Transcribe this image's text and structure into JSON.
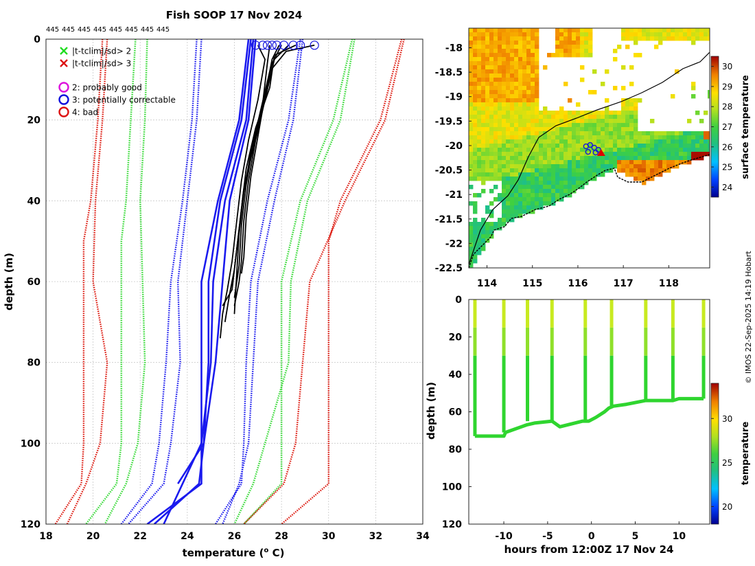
{
  "page": {
    "title": "Fish SOOP 17 Nov 2024",
    "watermark": "© IMOS 22-Sep-2025 14:19 Hobart",
    "profile_count_label": "445",
    "profile_count_repeat": 8
  },
  "colors": {
    "profile": "#000000",
    "clim_blue": "#1a1aee",
    "clim_green": "#3ddb3d",
    "clim_red": "#dd1a10",
    "marker_blue": "#1414dd",
    "coast": "#000000"
  },
  "chart_data": [
    {
      "id": "profiles",
      "type": "line",
      "xlabel": "temperature (° C)",
      "ylabel": "depth (m)",
      "xlim": [
        18,
        34
      ],
      "ylim": [
        120,
        0
      ],
      "xticks": [
        18,
        20,
        22,
        24,
        26,
        28,
        30,
        32,
        34
      ],
      "yticks": [
        0,
        20,
        40,
        60,
        80,
        100,
        120
      ],
      "legend": [
        {
          "label": "|t-tclim|/sd> 2",
          "marker": "x",
          "color": "#22dd22"
        },
        {
          "label": "|t-tclim|/sd> 3",
          "marker": "x",
          "color": "#dd1111"
        },
        {
          "label": "2: probably good",
          "marker": "o",
          "color": "#dd11dd"
        },
        {
          "label": "3: potentially correctable",
          "marker": "o",
          "color": "#1111dd"
        },
        {
          "label": "4: bad",
          "marker": "o",
          "color": "#dd1111"
        }
      ],
      "series": [
        {
          "name": "climatology -3sd",
          "style": "red-dotted",
          "points": [
            [
              20.4,
              0
            ],
            [
              20.2,
              20
            ],
            [
              19.9,
              40
            ],
            [
              19.6,
              50
            ],
            [
              19.6,
              100
            ],
            [
              19.5,
              110
            ],
            [
              18.4,
              120
            ]
          ]
        },
        {
          "name": "climatology -3sd alt",
          "style": "red-dotted",
          "points": [
            [
              20.6,
              0
            ],
            [
              20.4,
              20
            ],
            [
              20.1,
              40
            ],
            [
              20.0,
              60
            ],
            [
              20.6,
              80
            ],
            [
              20.3,
              100
            ],
            [
              19.7,
              110
            ],
            [
              18.9,
              120
            ]
          ]
        },
        {
          "name": "climatology -2sd",
          "style": "green-dotted",
          "points": [
            [
              21.8,
              0
            ],
            [
              21.6,
              20
            ],
            [
              21.4,
              40
            ],
            [
              21.2,
              50
            ],
            [
              21.2,
              100
            ],
            [
              21.0,
              110
            ],
            [
              19.7,
              120
            ]
          ]
        },
        {
          "name": "climatology -2sd alt",
          "style": "green-dotted",
          "points": [
            [
              22.3,
              0
            ],
            [
              22.2,
              20
            ],
            [
              22.0,
              40
            ],
            [
              22.1,
              60
            ],
            [
              22.2,
              80
            ],
            [
              21.9,
              100
            ],
            [
              21.4,
              110
            ],
            [
              20.5,
              120
            ]
          ]
        },
        {
          "name": "climatology -1sd",
          "style": "blue-dotted",
          "points": [
            [
              24.4,
              0
            ],
            [
              24.2,
              20
            ],
            [
              23.8,
              40
            ],
            [
              23.3,
              60
            ],
            [
              23.1,
              80
            ],
            [
              22.8,
              100
            ],
            [
              22.5,
              110
            ],
            [
              21.2,
              120
            ]
          ]
        },
        {
          "name": "climatology -1sd alt",
          "style": "blue-dotted",
          "points": [
            [
              24.6,
              0
            ],
            [
              24.4,
              20
            ],
            [
              24.0,
              40
            ],
            [
              23.6,
              60
            ],
            [
              23.7,
              80
            ],
            [
              23.3,
              100
            ],
            [
              23.0,
              110
            ],
            [
              21.5,
              120
            ]
          ]
        },
        {
          "name": "climatology +1sd",
          "style": "blue-dotted",
          "points": [
            [
              28.8,
              0
            ],
            [
              28.3,
              20
            ],
            [
              27.4,
              40
            ],
            [
              26.7,
              60
            ],
            [
              26.5,
              80
            ],
            [
              26.4,
              100
            ],
            [
              26.3,
              110
            ],
            [
              25.2,
              120
            ]
          ]
        },
        {
          "name": "climatology +1sd alt",
          "style": "blue-dotted",
          "points": [
            [
              28.9,
              0
            ],
            [
              28.5,
              20
            ],
            [
              27.7,
              40
            ],
            [
              27.0,
              60
            ],
            [
              26.8,
              80
            ],
            [
              26.6,
              100
            ],
            [
              26.2,
              110
            ],
            [
              25.5,
              120
            ]
          ]
        },
        {
          "name": "climatology +2sd",
          "style": "green-dotted",
          "points": [
            [
              31.0,
              0
            ],
            [
              30.2,
              20
            ],
            [
              28.8,
              40
            ],
            [
              28.0,
              60
            ],
            [
              28.0,
              100
            ],
            [
              28.0,
              110
            ],
            [
              26.4,
              120
            ]
          ]
        },
        {
          "name": "climatology +2sd alt",
          "style": "green-dotted",
          "points": [
            [
              31.1,
              0
            ],
            [
              30.5,
              20
            ],
            [
              29.1,
              40
            ],
            [
              28.4,
              60
            ],
            [
              28.3,
              80
            ],
            [
              27.3,
              100
            ],
            [
              26.8,
              110
            ],
            [
              26.0,
              120
            ]
          ]
        },
        {
          "name": "climatology +3sd",
          "style": "red-dotted",
          "points": [
            [
              33.1,
              0
            ],
            [
              32.2,
              20
            ],
            [
              30.5,
              40
            ],
            [
              30.0,
              50
            ],
            [
              30.0,
              100
            ],
            [
              30.0,
              110
            ],
            [
              28.0,
              120
            ]
          ]
        },
        {
          "name": "climatology +3sd alt",
          "style": "red-dotted",
          "points": [
            [
              33.2,
              0
            ],
            [
              32.4,
              20
            ],
            [
              30.7,
              40
            ],
            [
              29.2,
              60
            ],
            [
              28.9,
              80
            ],
            [
              28.6,
              100
            ],
            [
              28.1,
              110
            ],
            [
              26.4,
              120
            ]
          ]
        },
        {
          "name": "mean climatology",
          "style": "blue-solid",
          "points": [
            [
              26.6,
              0
            ],
            [
              26.2,
              20
            ],
            [
              25.3,
              40
            ],
            [
              24.6,
              60
            ],
            [
              24.6,
              80
            ],
            [
              24.6,
              100
            ],
            [
              24.6,
              110
            ],
            [
              22.3,
              120
            ]
          ]
        },
        {
          "name": "mean climatology alt 1",
          "style": "blue-solid",
          "points": [
            [
              26.7,
              0
            ],
            [
              26.3,
              20
            ],
            [
              25.4,
              40
            ],
            [
              24.9,
              60
            ],
            [
              24.9,
              80
            ],
            [
              24.7,
              100
            ],
            [
              24.5,
              110
            ],
            [
              22.6,
              120
            ]
          ]
        },
        {
          "name": "mean climatology alt 2",
          "style": "blue-solid",
          "points": [
            [
              26.8,
              0
            ],
            [
              26.5,
              20
            ],
            [
              25.6,
              40
            ],
            [
              25.1,
              60
            ],
            [
              25.0,
              80
            ],
            [
              24.6,
              100
            ],
            [
              23.8,
              110
            ],
            [
              23.0,
              120
            ]
          ]
        },
        {
          "name": "mean climatology alt 3",
          "style": "blue-solid",
          "points": [
            [
              26.9,
              0
            ],
            [
              26.6,
              20
            ],
            [
              25.8,
              40
            ],
            [
              25.5,
              60
            ],
            [
              25.2,
              80
            ],
            [
              24.7,
              100
            ],
            [
              23.6,
              110
            ]
          ]
        },
        {
          "name": "profile 1",
          "style": "black-solid",
          "points": [
            [
              27.0,
              1.5
            ],
            [
              27.3,
              5
            ],
            [
              27.0,
              15
            ],
            [
              26.6,
              25
            ],
            [
              26.3,
              35
            ],
            [
              26.1,
              45
            ],
            [
              25.9,
              55
            ],
            [
              25.7,
              62
            ],
            [
              25.5,
              68
            ],
            [
              25.4,
              74
            ]
          ]
        },
        {
          "name": "profile 2",
          "style": "black-solid",
          "points": [
            [
              28.3,
              1.5
            ],
            [
              27.7,
              5
            ],
            [
              27.3,
              15
            ],
            [
              26.9,
              25
            ],
            [
              26.6,
              35
            ],
            [
              26.4,
              45
            ],
            [
              26.3,
              55
            ],
            [
              26.2,
              60
            ],
            [
              26.0,
              66
            ]
          ]
        },
        {
          "name": "profile 3",
          "style": "black-solid",
          "points": [
            [
              29.4,
              1.5
            ],
            [
              28.2,
              3
            ],
            [
              27.5,
              8
            ],
            [
              27.1,
              18
            ],
            [
              26.7,
              28
            ],
            [
              26.4,
              38
            ],
            [
              26.2,
              48
            ],
            [
              26.1,
              58
            ],
            [
              26.0,
              68
            ]
          ]
        },
        {
          "name": "profile 4",
          "style": "black-solid",
          "points": [
            [
              28.6,
              1.5
            ],
            [
              27.7,
              4
            ],
            [
              27.5,
              12
            ],
            [
              26.9,
              22
            ],
            [
              26.5,
              32
            ],
            [
              26.3,
              42
            ],
            [
              26.1,
              52
            ],
            [
              25.9,
              62
            ],
            [
              25.5,
              66
            ]
          ]
        },
        {
          "name": "profile 5",
          "style": "black-solid",
          "points": [
            [
              27.5,
              1.5
            ],
            [
              27.4,
              6
            ],
            [
              27.2,
              16
            ],
            [
              26.8,
              26
            ],
            [
              26.5,
              36
            ],
            [
              26.3,
              46
            ],
            [
              26.2,
              56
            ],
            [
              26.0,
              64
            ]
          ]
        },
        {
          "name": "profile 6",
          "style": "black-solid",
          "points": [
            [
              27.9,
              1.5
            ],
            [
              27.6,
              5
            ],
            [
              27.3,
              14
            ],
            [
              27.0,
              24
            ],
            [
              26.7,
              34
            ],
            [
              26.5,
              44
            ],
            [
              26.4,
              54
            ],
            [
              26.3,
              58
            ]
          ]
        },
        {
          "name": "profile 7",
          "style": "black-solid",
          "points": [
            [
              28.0,
              1.5
            ],
            [
              27.6,
              6
            ],
            [
              27.2,
              17
            ],
            [
              26.8,
              27
            ],
            [
              26.4,
              37
            ],
            [
              26.2,
              47
            ],
            [
              26.0,
              57
            ],
            [
              25.8,
              63
            ],
            [
              25.6,
              70
            ]
          ]
        }
      ],
      "surface_markers_x": [
        26.9,
        27.2,
        27.4,
        27.6,
        27.8,
        28.1,
        28.5,
        28.8,
        29.4
      ]
    },
    {
      "id": "sst_map",
      "type": "heatmap",
      "colorbar_label": "surface temperature",
      "colorbar_range": [
        23.5,
        30.5
      ],
      "colorbar_ticks": [
        24,
        25,
        26,
        27,
        28,
        29,
        30
      ],
      "xlim": [
        113.6,
        118.9
      ],
      "ylim": [
        -22.5,
        -17.6
      ],
      "xticks": [
        114,
        115,
        116,
        117,
        118
      ],
      "yticks": [
        -18,
        -18.5,
        -19,
        -19.5,
        -20,
        -20.5,
        -21,
        -21.5,
        -22,
        -22.5
      ],
      "fish_position": [
        116.3,
        -20.1
      ]
    },
    {
      "id": "time_depth",
      "type": "scatter",
      "xlabel": "hours from 12:00Z 17 Nov 24",
      "ylabel": "depth (m)",
      "xlim": [
        -14,
        13.5
      ],
      "ylim": [
        120,
        0
      ],
      "xticks": [
        -10,
        -5,
        0,
        5,
        10
      ],
      "yticks": [
        0,
        20,
        40,
        60,
        80,
        100,
        120
      ],
      "colorbar_label": "temperature",
      "colorbar_range": [
        18,
        34
      ],
      "colorbar_ticks": [
        20,
        25,
        30
      ],
      "track": [
        [
          -13.3,
          73
        ],
        [
          -10,
          73
        ],
        [
          -9.8,
          71
        ],
        [
          -7.4,
          67
        ],
        [
          -6.5,
          66
        ],
        [
          -4.5,
          65
        ],
        [
          -3.6,
          68
        ],
        [
          -1,
          65
        ],
        [
          -0.3,
          65
        ],
        [
          0.5,
          63
        ],
        [
          1.5,
          60
        ],
        [
          2,
          58
        ],
        [
          2.5,
          57
        ],
        [
          4,
          56
        ],
        [
          6.2,
          54
        ],
        [
          7,
          54
        ],
        [
          9.3,
          54
        ],
        [
          10,
          53
        ],
        [
          12.8,
          53
        ]
      ],
      "dives": [
        {
          "hour": -13.3,
          "bottom": 73
        },
        {
          "hour": -10.0,
          "bottom": 71
        },
        {
          "hour": -7.3,
          "bottom": 65
        },
        {
          "hour": -4.5,
          "bottom": 65
        },
        {
          "hour": -0.7,
          "bottom": 65
        },
        {
          "hour": 2.3,
          "bottom": 58
        },
        {
          "hour": 6.2,
          "bottom": 54
        },
        {
          "hour": 9.3,
          "bottom": 54
        },
        {
          "hour": 12.8,
          "bottom": 53
        }
      ]
    }
  ]
}
